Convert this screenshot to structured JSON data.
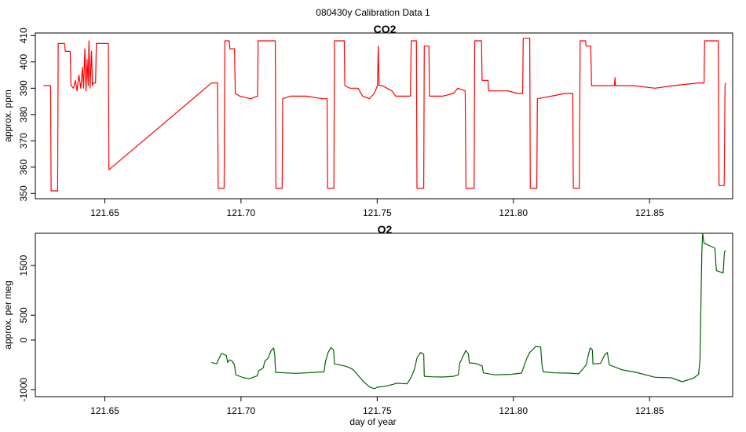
{
  "suptitle": "080430y   Calibration Data 1",
  "xlabel": "day of year",
  "colors": {
    "co2": "#ff0000",
    "o2": "#006400"
  },
  "chart_data": [
    {
      "type": "line",
      "title": "CO2",
      "ylabel": "approx. ppm",
      "xlim": [
        121.6245,
        121.8805
      ],
      "ylim": [
        348,
        411
      ],
      "xticks": [
        121.65,
        121.7,
        121.75,
        121.8,
        121.85
      ],
      "xtick_labels": [
        "121.65",
        "121.70",
        "121.75",
        "121.80",
        "121.85"
      ],
      "yticks": [
        350,
        360,
        370,
        380,
        390,
        400,
        410
      ],
      "ytick_labels": [
        "350",
        "360",
        "370",
        "380",
        "390",
        "400",
        "410"
      ],
      "series": [
        {
          "color": "#ff0000",
          "points": [
            [
              121.6275,
              391
            ],
            [
              121.6301,
              391
            ],
            [
              121.6303,
              351
            ],
            [
              121.6327,
              351
            ],
            [
              121.6329,
              407
            ],
            [
              121.6352,
              407
            ],
            [
              121.6355,
              404
            ],
            [
              121.6373,
              404
            ],
            [
              121.6376,
              391
            ],
            [
              121.6385,
              390
            ],
            [
              121.6392,
              393
            ],
            [
              121.6398,
              389
            ],
            [
              121.6405,
              395
            ],
            [
              121.6412,
              390
            ],
            [
              121.6418,
              398
            ],
            [
              121.6422,
              390
            ],
            [
              121.6427,
              405
            ],
            [
              121.6431,
              389
            ],
            [
              121.6435,
              401
            ],
            [
              121.6439,
              391
            ],
            [
              121.6442,
              408
            ],
            [
              121.6446,
              390
            ],
            [
              121.6451,
              404
            ],
            [
              121.6455,
              391
            ],
            [
              121.6458,
              392
            ],
            [
              121.6466,
              392
            ],
            [
              121.6469,
              407
            ],
            [
              121.6513,
              407
            ],
            [
              121.6515,
              359
            ],
            [
              121.6892,
              392
            ],
            [
              121.6914,
              392
            ],
            [
              121.6916,
              352
            ],
            [
              121.6938,
              352
            ],
            [
              121.6941,
              408
            ],
            [
              121.6957,
              408
            ],
            [
              121.6959,
              405
            ],
            [
              121.6976,
              405
            ],
            [
              121.6979,
              388
            ],
            [
              121.6995,
              387
            ],
            [
              121.7035,
              386
            ],
            [
              121.7061,
              387
            ],
            [
              121.7063,
              408
            ],
            [
              121.7126,
              408
            ],
            [
              121.7128,
              352
            ],
            [
              121.7151,
              352
            ],
            [
              121.7153,
              386
            ],
            [
              121.718,
              387
            ],
            [
              121.724,
              387
            ],
            [
              121.73,
              386
            ],
            [
              121.7316,
              386
            ],
            [
              121.7318,
              352
            ],
            [
              121.7341,
              352
            ],
            [
              121.7343,
              408
            ],
            [
              121.7379,
              408
            ],
            [
              121.7381,
              391
            ],
            [
              121.74,
              390
            ],
            [
              121.743,
              390
            ],
            [
              121.7447,
              387
            ],
            [
              121.7471,
              386
            ],
            [
              121.7489,
              388
            ],
            [
              121.7501,
              391
            ],
            [
              121.7504,
              406
            ],
            [
              121.7507,
              391
            ],
            [
              121.7518,
              391
            ],
            [
              121.7536,
              390
            ],
            [
              121.7554,
              389
            ],
            [
              121.7568,
              387
            ],
            [
              121.7622,
              387
            ],
            [
              121.7625,
              408
            ],
            [
              121.7644,
              408
            ],
            [
              121.7646,
              352
            ],
            [
              121.7671,
              352
            ],
            [
              121.7673,
              406
            ],
            [
              121.769,
              406
            ],
            [
              121.7692,
              387
            ],
            [
              121.774,
              387
            ],
            [
              121.778,
              388
            ],
            [
              121.7796,
              390
            ],
            [
              121.7823,
              389
            ],
            [
              121.7826,
              352
            ],
            [
              121.7856,
              352
            ],
            [
              121.7858,
              408
            ],
            [
              121.7883,
              408
            ],
            [
              121.7885,
              393
            ],
            [
              121.7907,
              393
            ],
            [
              121.7909,
              389
            ],
            [
              121.798,
              389
            ],
            [
              121.8016,
              388
            ],
            [
              121.8034,
              388
            ],
            [
              121.8036,
              409
            ],
            [
              121.806,
              409
            ],
            [
              121.8062,
              352
            ],
            [
              121.8086,
              352
            ],
            [
              121.8088,
              386
            ],
            [
              121.814,
              387
            ],
            [
              121.819,
              388
            ],
            [
              121.8218,
              388
            ],
            [
              121.822,
              352
            ],
            [
              121.8242,
              352
            ],
            [
              121.8245,
              408
            ],
            [
              121.8265,
              408
            ],
            [
              121.8267,
              406
            ],
            [
              121.8284,
              406
            ],
            [
              121.8287,
              391
            ],
            [
              121.834,
              391
            ],
            [
              121.8371,
              391
            ],
            [
              121.8373,
              394
            ],
            [
              121.8375,
              391
            ],
            [
              121.844,
              391
            ],
            [
              121.852,
              390
            ],
            [
              121.8588,
              391
            ],
            [
              121.868,
              392
            ],
            [
              121.87,
              392
            ],
            [
              121.8702,
              408
            ],
            [
              121.8752,
              408
            ],
            [
              121.8755,
              353
            ],
            [
              121.8774,
              353
            ],
            [
              121.8777,
              391
            ],
            [
              121.878,
              392
            ]
          ]
        }
      ]
    },
    {
      "type": "line",
      "title": "O2",
      "ylabel": "approx. per meg",
      "xlim": [
        121.6245,
        121.8805
      ],
      "ylim": [
        -1140,
        2150
      ],
      "xticks": [
        121.65,
        121.7,
        121.75,
        121.8,
        121.85
      ],
      "xtick_labels": [
        "121.65",
        "121.70",
        "121.75",
        "121.80",
        "121.85"
      ],
      "yticks": [
        -1000,
        0,
        500,
        1500
      ],
      "ytick_labels": [
        "-1000",
        "0",
        "500",
        "1500"
      ],
      "series": [
        {
          "color": "#006400",
          "points": [
            [
              121.6892,
              -450
            ],
            [
              121.691,
              -480
            ],
            [
              121.6928,
              -270
            ],
            [
              121.6946,
              -310
            ],
            [
              121.6951,
              -450
            ],
            [
              121.6958,
              -400
            ],
            [
              121.6967,
              -420
            ],
            [
              121.6976,
              -500
            ],
            [
              121.6981,
              -700
            ],
            [
              121.701,
              -760
            ],
            [
              121.703,
              -780
            ],
            [
              121.706,
              -720
            ],
            [
              121.7065,
              -620
            ],
            [
              121.7082,
              -560
            ],
            [
              121.7087,
              -430
            ],
            [
              121.71,
              -360
            ],
            [
              121.7104,
              -300
            ],
            [
              121.711,
              -220
            ],
            [
              121.712,
              -160
            ],
            [
              121.7124,
              -300
            ],
            [
              121.7127,
              -650
            ],
            [
              121.716,
              -660
            ],
            [
              121.72,
              -670
            ],
            [
              121.724,
              -660
            ],
            [
              121.7305,
              -640
            ],
            [
              121.731,
              -440
            ],
            [
              121.732,
              -250
            ],
            [
              121.733,
              -150
            ],
            [
              121.734,
              -200
            ],
            [
              121.7343,
              -480
            ],
            [
              121.738,
              -520
            ],
            [
              121.74,
              -560
            ],
            [
              121.7413,
              -600
            ],
            [
              121.7431,
              -720
            ],
            [
              121.745,
              -840
            ],
            [
              121.7471,
              -940
            ],
            [
              121.749,
              -980
            ],
            [
              121.75,
              -950
            ],
            [
              121.753,
              -930
            ],
            [
              121.756,
              -890
            ],
            [
              121.757,
              -870
            ],
            [
              121.761,
              -880
            ],
            [
              121.7624,
              -760
            ],
            [
              121.7637,
              -580
            ],
            [
              121.7646,
              -360
            ],
            [
              121.766,
              -250
            ],
            [
              121.7671,
              -290
            ],
            [
              121.7673,
              -730
            ],
            [
              121.77,
              -740
            ],
            [
              121.774,
              -745
            ],
            [
              121.778,
              -730
            ],
            [
              121.7798,
              -700
            ],
            [
              121.7803,
              -470
            ],
            [
              121.7815,
              -330
            ],
            [
              121.7825,
              -210
            ],
            [
              121.7835,
              -280
            ],
            [
              121.7838,
              -460
            ],
            [
              121.786,
              -470
            ],
            [
              121.7885,
              -520
            ],
            [
              121.789,
              -660
            ],
            [
              121.793,
              -700
            ],
            [
              121.796,
              -695
            ],
            [
              121.799,
              -690
            ],
            [
              121.803,
              -665
            ],
            [
              121.804,
              -510
            ],
            [
              121.805,
              -360
            ],
            [
              121.806,
              -250
            ],
            [
              121.807,
              -200
            ],
            [
              121.8082,
              -130
            ],
            [
              121.81,
              -140
            ],
            [
              121.8105,
              -500
            ],
            [
              121.811,
              -640
            ],
            [
              121.815,
              -660
            ],
            [
              121.82,
              -665
            ],
            [
              121.824,
              -680
            ],
            [
              121.8268,
              -500
            ],
            [
              121.8275,
              -300
            ],
            [
              121.8282,
              -160
            ],
            [
              121.829,
              -200
            ],
            [
              121.8292,
              -480
            ],
            [
              121.832,
              -470
            ],
            [
              121.8335,
              -300
            ],
            [
              121.8345,
              -250
            ],
            [
              121.8352,
              -500
            ],
            [
              121.84,
              -600
            ],
            [
              121.845,
              -650
            ],
            [
              121.852,
              -750
            ],
            [
              121.858,
              -760
            ],
            [
              121.862,
              -840
            ],
            [
              121.866,
              -770
            ],
            [
              121.868,
              -690
            ],
            [
              121.8685,
              -400
            ],
            [
              121.8692,
              1800
            ],
            [
              121.8695,
              2150
            ],
            [
              121.87,
              1950
            ],
            [
              121.874,
              1850
            ],
            [
              121.8745,
              1400
            ],
            [
              121.877,
              1350
            ],
            [
              121.8775,
              1780
            ],
            [
              121.878,
              1800
            ]
          ]
        }
      ]
    }
  ]
}
